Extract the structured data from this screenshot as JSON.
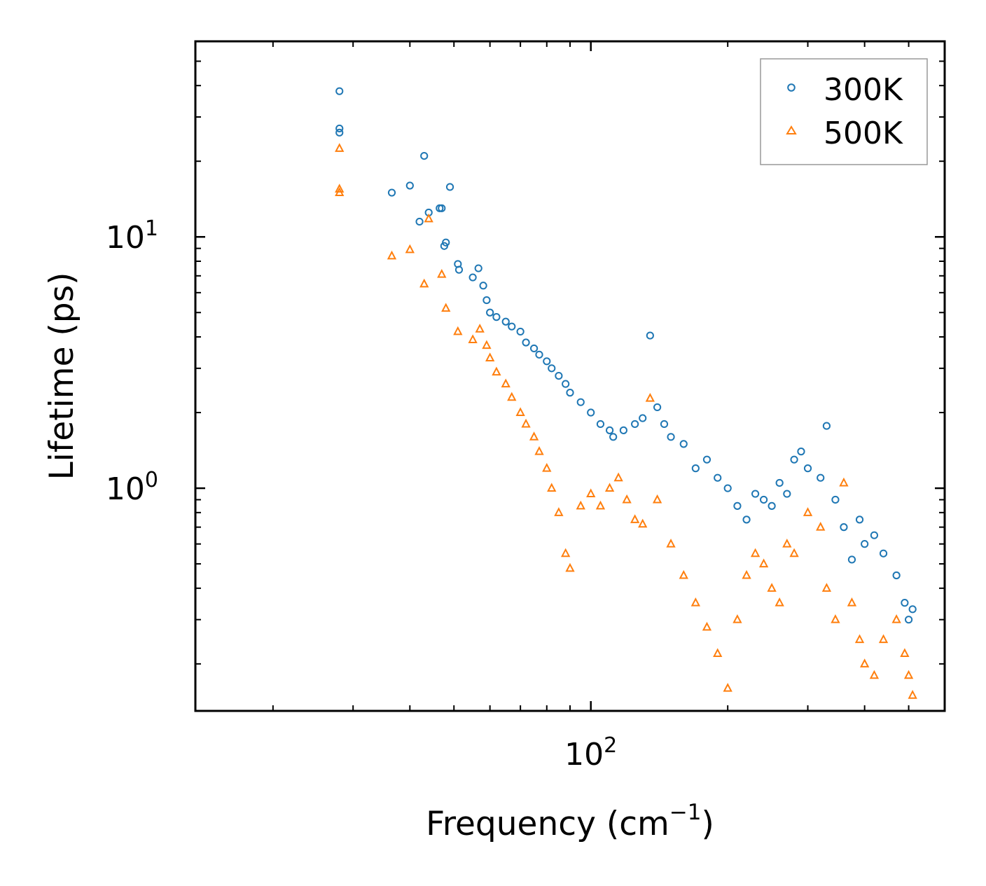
{
  "chart_data": {
    "type": "scatter",
    "xscale": "log",
    "yscale": "log",
    "xlabel": "Frequency (cm",
    "xlabel_sup": "−1",
    "xlabel_tail": ")",
    "ylabel": "Lifetime (ps)",
    "xlim": [
      13.5,
      600
    ],
    "ylim": [
      0.13,
      60
    ],
    "xticks": [
      {
        "value": 100,
        "base": "10",
        "exp": "2"
      }
    ],
    "yticks": [
      {
        "value": 1,
        "base": "10",
        "exp": "0"
      },
      {
        "value": 10,
        "base": "10",
        "exp": "1"
      }
    ],
    "legend": {
      "position": "top-right",
      "frame": true
    },
    "series": [
      {
        "name": "300K",
        "marker": "circle",
        "color": "#1f77b4",
        "x": [
          28,
          28,
          28,
          36.5,
          40,
          43,
          42,
          44,
          46.5,
          47,
          48,
          47.6,
          49,
          51,
          51.3,
          55,
          56.6,
          58,
          59,
          60,
          62,
          65,
          67,
          70,
          72,
          75,
          77,
          80,
          82,
          85,
          88,
          90,
          95,
          100,
          105,
          110,
          112,
          118,
          125,
          130,
          135,
          140,
          145,
          150,
          160,
          170,
          180,
          190,
          200,
          210,
          220,
          230,
          240,
          250,
          260,
          270,
          280,
          290,
          300,
          320,
          330,
          345,
          360,
          375,
          390,
          400,
          420,
          440,
          470,
          490,
          500,
          510
        ],
        "y": [
          38,
          26,
          27,
          15,
          16,
          21,
          11.5,
          12.5,
          13,
          13,
          9.5,
          9.2,
          15.8,
          7.8,
          7.4,
          6.9,
          7.5,
          6.4,
          5.6,
          5.0,
          4.8,
          4.6,
          4.4,
          4.2,
          3.8,
          3.6,
          3.4,
          3.2,
          3.0,
          2.8,
          2.6,
          2.4,
          2.2,
          2.0,
          1.8,
          1.7,
          1.6,
          1.7,
          1.8,
          1.9,
          4.05,
          2.1,
          1.8,
          1.6,
          1.5,
          1.2,
          1.3,
          1.1,
          1.0,
          0.85,
          0.75,
          0.95,
          0.9,
          0.85,
          1.05,
          0.95,
          1.3,
          1.4,
          1.2,
          1.1,
          1.77,
          0.9,
          0.7,
          0.52,
          0.75,
          0.6,
          0.65,
          0.55,
          0.45,
          0.35,
          0.3,
          0.33
        ]
      },
      {
        "name": "500K",
        "marker": "triangle",
        "color": "#ff7f0e",
        "x": [
          28,
          28,
          28,
          36.5,
          40,
          43,
          44,
          47,
          48,
          51,
          55,
          57,
          59,
          60,
          62,
          65,
          67,
          70,
          72,
          75,
          77,
          80,
          82,
          85,
          88,
          90,
          95,
          100,
          105,
          110,
          115,
          120,
          125,
          130,
          135,
          140,
          150,
          160,
          170,
          180,
          190,
          200,
          210,
          220,
          230,
          240,
          250,
          260,
          270,
          280,
          300,
          320,
          330,
          345,
          360,
          375,
          390,
          400,
          420,
          440,
          470,
          490,
          500,
          510
        ],
        "y": [
          22.5,
          15.5,
          15,
          8.4,
          8.9,
          6.5,
          11.8,
          7.1,
          5.2,
          4.2,
          3.9,
          4.3,
          3.7,
          3.3,
          2.9,
          2.6,
          2.3,
          2.0,
          1.8,
          1.6,
          1.4,
          1.2,
          1.0,
          0.8,
          0.55,
          0.48,
          0.85,
          0.95,
          0.85,
          1.0,
          1.1,
          0.9,
          0.75,
          0.72,
          2.28,
          0.9,
          0.6,
          0.45,
          0.35,
          0.28,
          0.22,
          0.16,
          0.3,
          0.45,
          0.55,
          0.5,
          0.4,
          0.35,
          0.6,
          0.55,
          0.8,
          0.7,
          0.4,
          0.3,
          1.05,
          0.35,
          0.25,
          0.2,
          0.18,
          0.25,
          0.3,
          0.22,
          0.18,
          0.15
        ]
      }
    ]
  }
}
